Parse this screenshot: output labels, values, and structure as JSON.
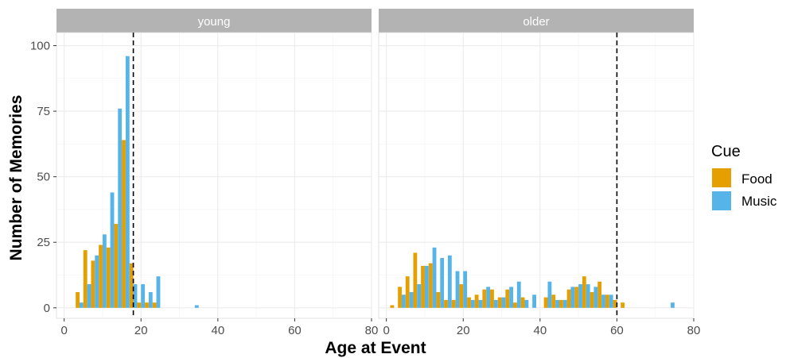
{
  "chart_data": {
    "type": "bar",
    "subtype": "faceted-histogram",
    "xlabel": "Age at Event",
    "ylabel": "Number of Memories",
    "xlim": [
      -2,
      80
    ],
    "ylim": [
      -4,
      105
    ],
    "x_ticks": [
      0,
      20,
      40,
      60,
      80
    ],
    "y_ticks": [
      0,
      25,
      50,
      75,
      100
    ],
    "bin_width": 2,
    "grid": true,
    "legend": {
      "title": "Cue",
      "position": "right",
      "entries": [
        {
          "label": "Food",
          "color": "#E69F00"
        },
        {
          "label": "Music",
          "color": "#56B4E9"
        }
      ]
    },
    "colors": {
      "Food": "#E69F00",
      "Music": "#56B4E9",
      "strip": "#B3B3B3",
      "grid_major": "#EBEBEB",
      "vline": "#000000"
    },
    "panels": [
      {
        "label": "young",
        "reference_line_x": 18,
        "bin_centers": [
          4,
          6,
          8,
          10,
          12,
          14,
          16,
          18,
          20,
          22,
          24,
          26,
          28,
          30,
          32,
          34,
          36
        ],
        "series": [
          {
            "name": "Food",
            "values": [
              6,
              22,
              18,
              24,
              23,
              32,
              64,
              17,
              2,
              2,
              2,
              0,
              0,
              0,
              0,
              0,
              0
            ]
          },
          {
            "name": "Music",
            "values": [
              2,
              9,
              20,
              28,
              44,
              76,
              96,
              9,
              9,
              6,
              12,
              0,
              0,
              0,
              0,
              1,
              0
            ]
          }
        ]
      },
      {
        "label": "older",
        "reference_line_x": 60,
        "bin_centers": [
          2,
          4,
          6,
          8,
          10,
          12,
          14,
          16,
          18,
          20,
          22,
          24,
          26,
          28,
          30,
          32,
          34,
          36,
          38,
          40,
          42,
          44,
          46,
          48,
          50,
          52,
          54,
          56,
          58,
          60,
          62,
          64,
          66,
          68,
          70,
          72,
          74,
          76
        ],
        "series": [
          {
            "name": "Food",
            "values": [
              1,
              8,
              12,
              21,
              16,
              17,
              6,
              3,
              3,
              9,
              4,
              5,
              7,
              7,
              4,
              7,
              2,
              4,
              0,
              0,
              4,
              5,
              3,
              7,
              8,
              12,
              6,
              10,
              5,
              3,
              2,
              0,
              0,
              0,
              0,
              0,
              0,
              0
            ]
          },
          {
            "name": "Music",
            "values": [
              0,
              5,
              6,
              9,
              16,
              23,
              19,
              20,
              14,
              14,
              3,
              3,
              8,
              3,
              4,
              8,
              10,
              3,
              5,
              0,
              10,
              3,
              3,
              8,
              9,
              9,
              8,
              5,
              5,
              0,
              0,
              0,
              0,
              0,
              0,
              0,
              2,
              0
            ]
          }
        ]
      }
    ]
  }
}
